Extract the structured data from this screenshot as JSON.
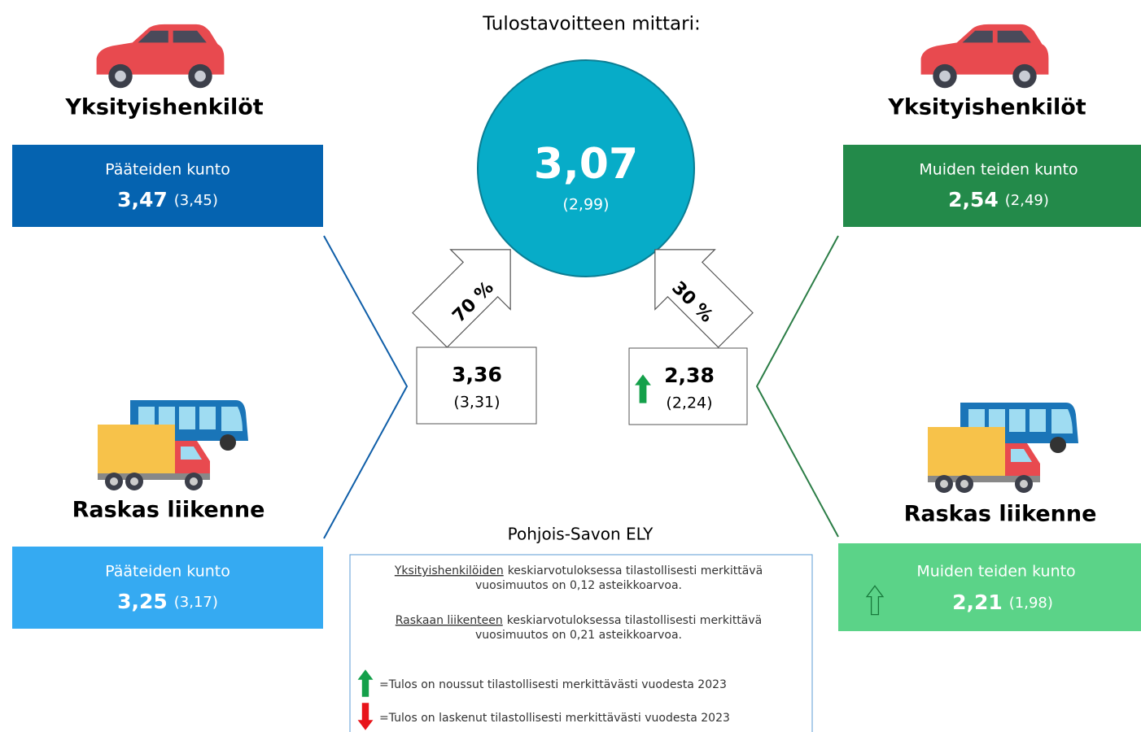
{
  "title": "Tulostavoitteen mittari:",
  "center": {
    "value": "3,07",
    "previous": "(2,99)"
  },
  "left": {
    "weight": "70 %",
    "value": "3,36",
    "previous": "(3,31)"
  },
  "right": {
    "weight": "30 %",
    "value": "2,38",
    "previous": "(2,24)"
  },
  "panels": [
    {
      "group": "Yksityishenkilöt",
      "label": "Pääteiden kunto",
      "value": "3,47",
      "previous": "(3,45)"
    },
    {
      "group": "Raskas liikenne",
      "label": "Pääteiden kunto",
      "value": "3,25",
      "previous": "(3,17)"
    },
    {
      "group": "Yksityishenkilöt",
      "label": "Muiden teiden kunto",
      "value": "2,54",
      "previous": "(2,49)"
    },
    {
      "group": "Raskas liikenne",
      "label": "Muiden teiden kunto",
      "value": "2,21",
      "previous": "(1,98)"
    }
  ],
  "region": "Pohjois-Savon ELY",
  "notes": [
    {
      "subject": "Yksityishenkilöiden",
      "line1": "keskiarvotuloksessa tilastollisesti merkittävä",
      "line2": "vuosimuutos on 0,12 asteikkoarvoa."
    },
    {
      "subject": "Raskaan liikenteen",
      "line1": "keskiarvotuloksessa tilastollisesti merkittävä",
      "line2": "vuosimuutos on 0,21 asteikkoarvoa."
    }
  ],
  "legend": [
    "=Tulos on noussut tilastollisesti merkittävästi vuodesta 2023",
    "=Tulos on laskenut tilastollisesti merkittävästi vuodesta 2023"
  ]
}
